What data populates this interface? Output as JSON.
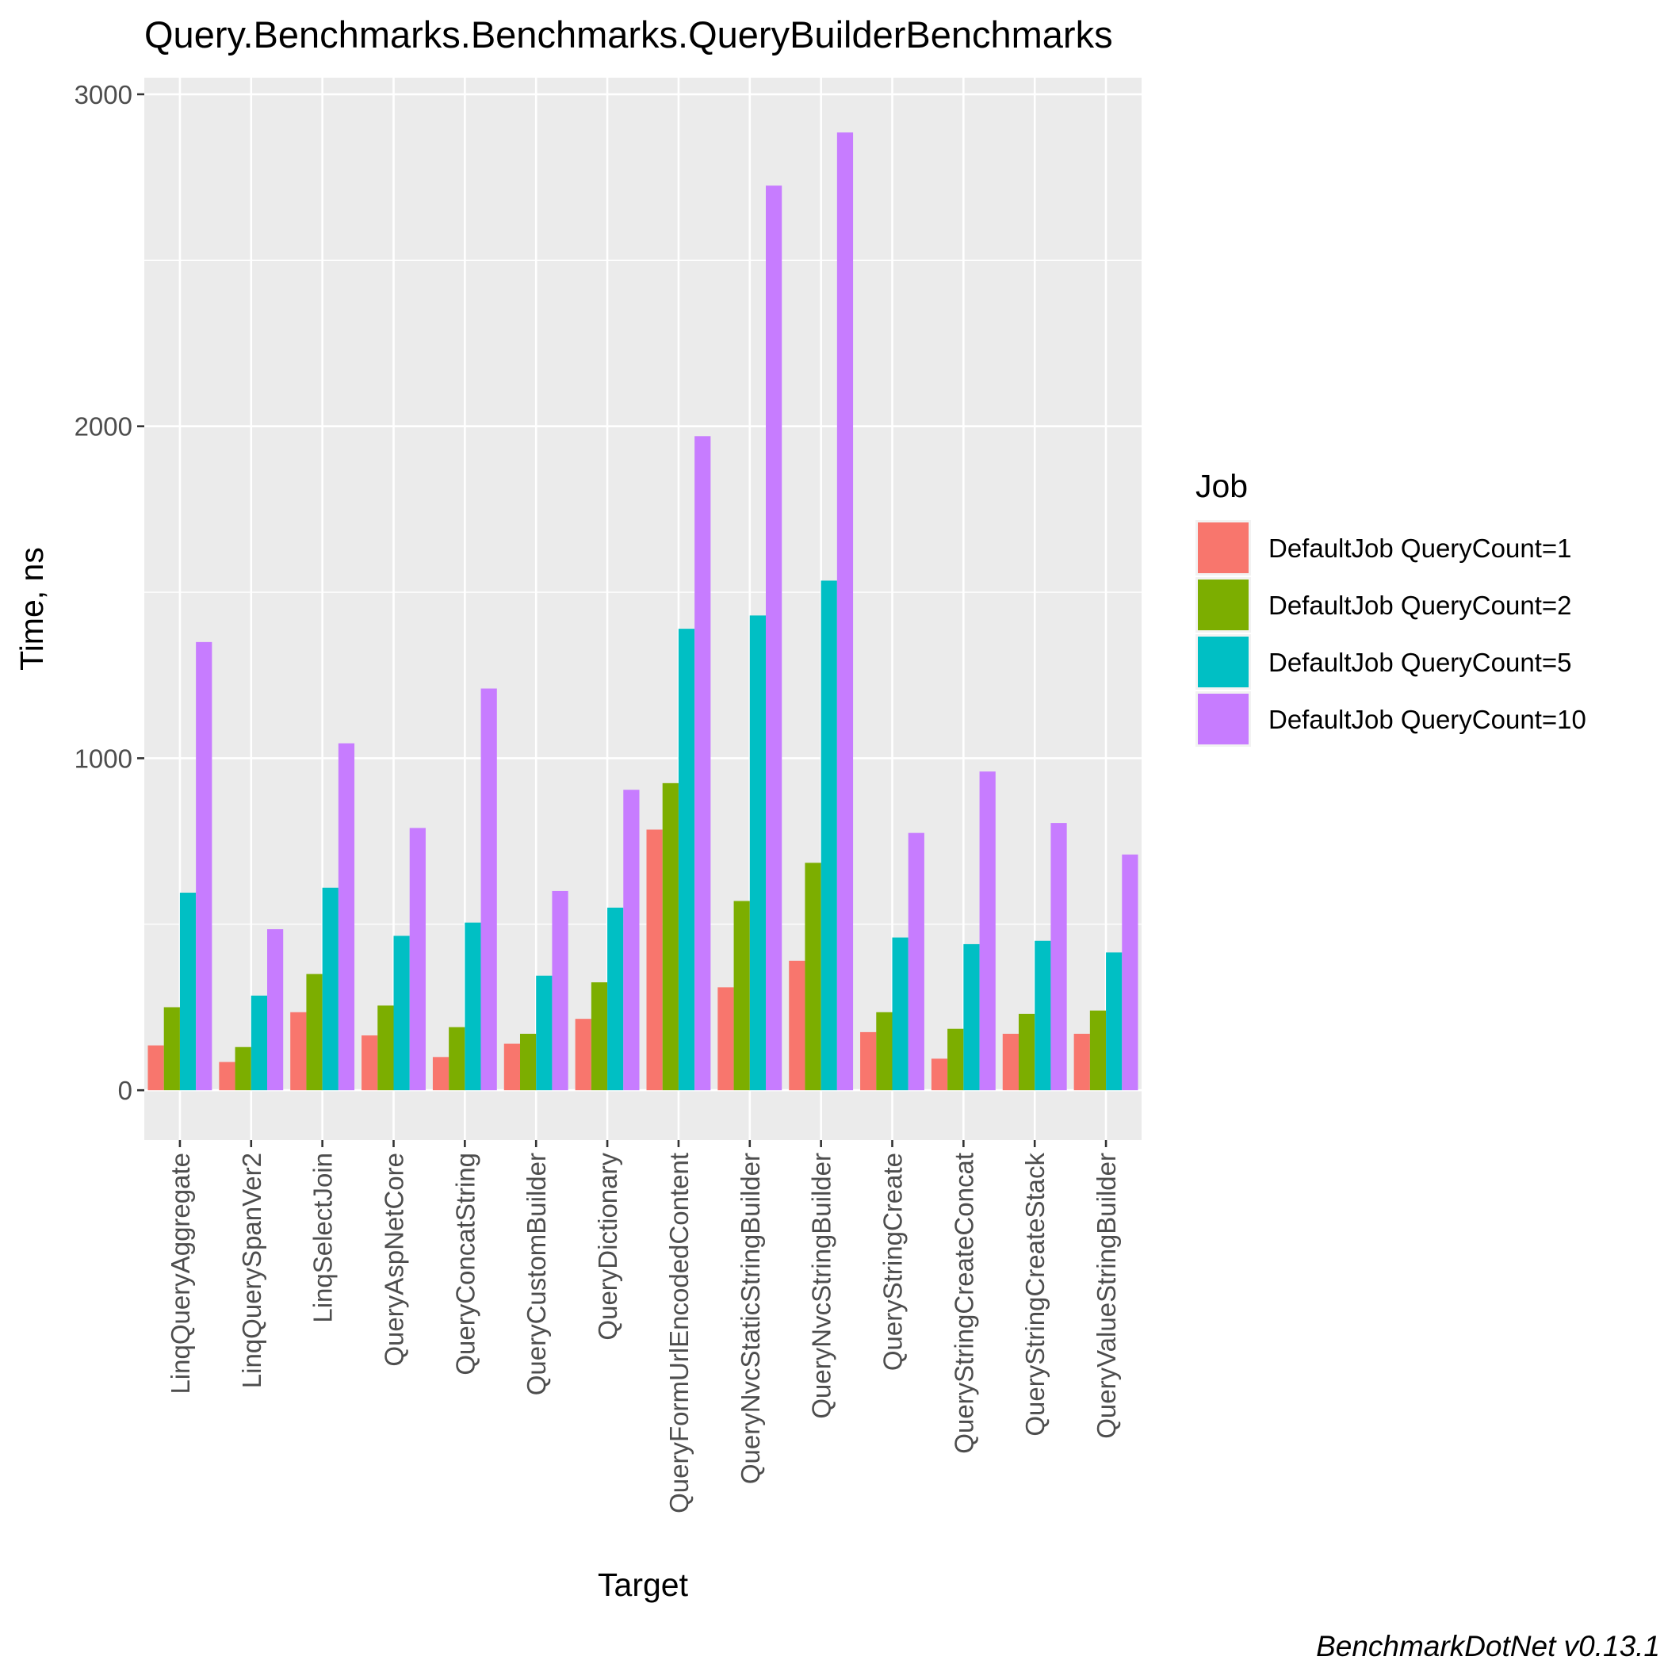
{
  "chart_data": {
    "type": "bar",
    "title": "Query.Benchmarks.Benchmarks.QueryBuilderBenchmarks",
    "xlabel": "Target",
    "ylabel": "Time, ns",
    "ylim": [
      -150,
      3050
    ],
    "yticks": [
      0,
      1000,
      2000,
      3000
    ],
    "grid": true,
    "legend_position": "right",
    "legend_title": "Job",
    "footer": "BenchmarkDotNet v0.13.1",
    "categories": [
      "LinqQueryAggregate",
      "LinqQuerySpanVer2",
      "LinqSelectJoin",
      "QueryAspNetCore",
      "QueryConcatString",
      "QueryCustomBuilder",
      "QueryDictionary",
      "QueryFormUrlEncodedContent",
      "QueryNvcStaticStringBuilder",
      "QueryNvcStringBuilder",
      "QueryStringCreate",
      "QueryStringCreateConcat",
      "QueryStringCreateStack",
      "QueryValueStringBuilder"
    ],
    "series": [
      {
        "name": "DefaultJob QueryCount=1",
        "color": "#F8766D",
        "values": [
          135,
          85,
          235,
          165,
          100,
          140,
          215,
          785,
          310,
          390,
          175,
          95,
          170,
          170
        ]
      },
      {
        "name": "DefaultJob QueryCount=2",
        "color": "#7CAE00",
        "values": [
          250,
          130,
          350,
          255,
          190,
          170,
          325,
          925,
          570,
          685,
          235,
          185,
          230,
          240
        ]
      },
      {
        "name": "DefaultJob QueryCount=5",
        "color": "#00BFC4",
        "values": [
          595,
          285,
          610,
          465,
          505,
          345,
          550,
          1390,
          1430,
          1535,
          460,
          440,
          450,
          415
        ]
      },
      {
        "name": "DefaultJob QueryCount=10",
        "color": "#C77CFF",
        "values": [
          1350,
          485,
          1045,
          790,
          1210,
          600,
          905,
          1970,
          2725,
          2885,
          775,
          960,
          805,
          710
        ]
      }
    ]
  }
}
